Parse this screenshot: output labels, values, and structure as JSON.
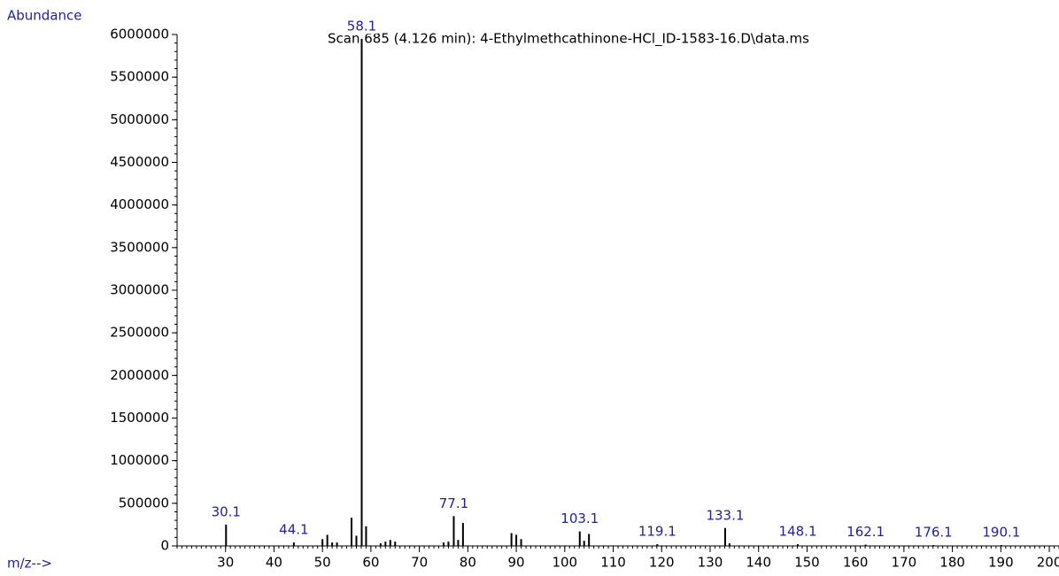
{
  "chart_data": {
    "type": "stick",
    "title": "Scan 685 (4.126 min): 4-Ethylmethcathinone-HCl_ID-1583-16.D\\data.ms",
    "y_label": "Abundance",
    "x_label": "m/z-->",
    "xlim": [
      20,
      202
    ],
    "ylim": [
      0,
      6000000
    ],
    "xticks": [
      30,
      40,
      50,
      60,
      70,
      80,
      90,
      100,
      110,
      120,
      130,
      140,
      150,
      160,
      170,
      180,
      190,
      200
    ],
    "yticks": [
      0,
      500000,
      1000000,
      1500000,
      2000000,
      2500000,
      3000000,
      3500000,
      4000000,
      4500000,
      5000000,
      5500000,
      6000000
    ],
    "color": "#000000",
    "x": [
      50,
      51,
      52,
      53,
      56,
      57,
      59,
      62,
      63,
      64,
      65,
      75,
      76,
      78,
      79,
      89,
      90,
      91,
      104,
      105,
      134
    ],
    "values": [
      80000,
      130000,
      40000,
      40000,
      330000,
      120000,
      230000,
      30000,
      50000,
      70000,
      50000,
      40000,
      50000,
      70000,
      270000,
      150000,
      130000,
      80000,
      60000,
      140000,
      30000
    ],
    "label_x": [
      30.1,
      44.1,
      58.1,
      77.1,
      103.1,
      119.1,
      133.1,
      148.1,
      162.1,
      176.1,
      190.1
    ],
    "label_values": [
      250000,
      40000,
      5950000,
      350000,
      170000,
      20000,
      210000,
      20000,
      15000,
      10000,
      10000
    ]
  }
}
